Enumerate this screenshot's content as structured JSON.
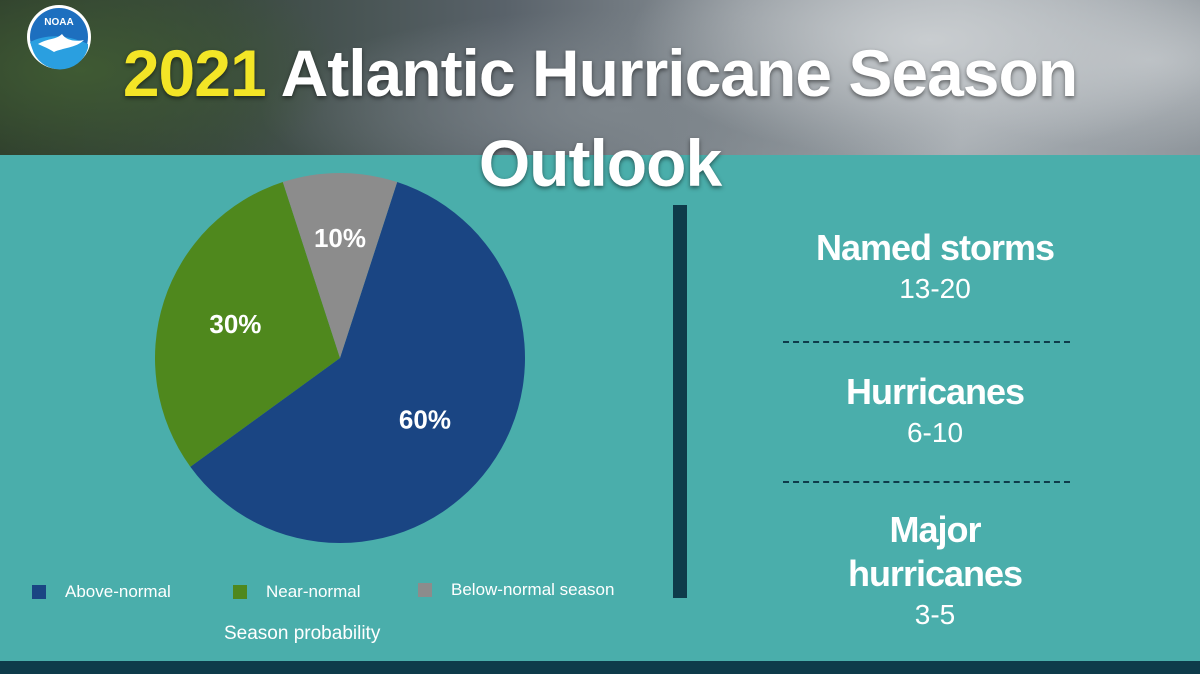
{
  "header": {
    "title_year": "2021",
    "title_rest": "Atlantic Hurricane Season Outlook",
    "logo_text": "NOAA",
    "year_color": "#f3e526"
  },
  "chart_data": {
    "type": "pie",
    "slices": [
      {
        "label": "Above-normal",
        "value": 60,
        "display": "60%",
        "color": "#1a4583"
      },
      {
        "label": "Near-normal",
        "value": 30,
        "display": "30%",
        "color": "#4f881d"
      },
      {
        "label": "Below-normal season",
        "value": 10,
        "display": "10%",
        "color": "#8c8c8c"
      }
    ],
    "legend_position": "bottom",
    "caption": "Season probability"
  },
  "stats": [
    {
      "title": "Named storms",
      "value": "13-20"
    },
    {
      "title": "Hurricanes",
      "value": "6-10"
    },
    {
      "title": "Major hurricanes",
      "value": "3-5"
    }
  ],
  "colors": {
    "background": "#4aaeab",
    "accent_dark": "#0e3b4a"
  }
}
